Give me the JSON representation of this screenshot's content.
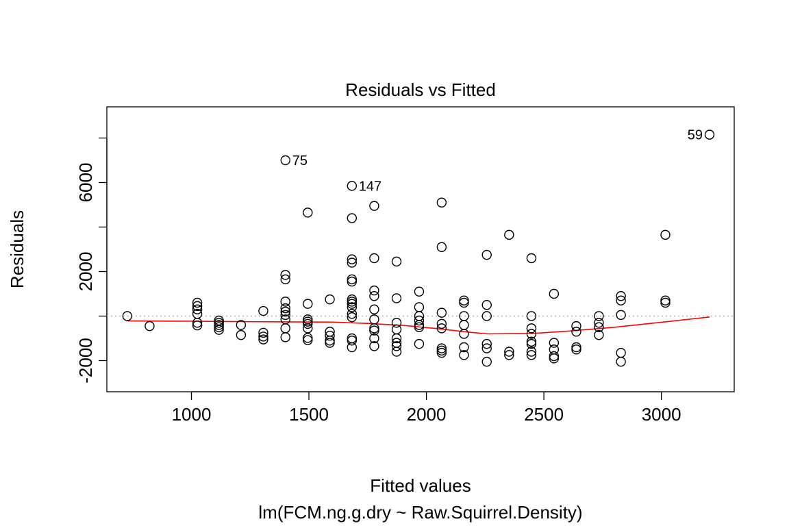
{
  "chart_data": {
    "type": "scatter",
    "title": "Residuals vs Fitted",
    "xlabel": "Fitted values",
    "ylabel": "Residuals",
    "subtitle": "lm(FCM.ng.g.dry ~ Raw.Squirrel.Density)",
    "xlim": [
      640,
      3310
    ],
    "ylim": [
      -3400,
      9400
    ],
    "xticks": [
      1000,
      1500,
      2000,
      2500,
      3000
    ],
    "yticks": [
      -2000,
      0,
      2000,
      4000,
      6000,
      8000
    ],
    "ytick_labels": [
      "-2000",
      "",
      "2000",
      "",
      "6000",
      ""
    ],
    "reference_line": {
      "y": 0,
      "style": "dotted",
      "color": "#b3b3b3"
    },
    "point_color": "#000000",
    "smooth_color": "#ff0000",
    "points": [
      {
        "x": 727,
        "y": 0
      },
      {
        "x": 822,
        "y": -450
      },
      {
        "x": 1025,
        "y": 600
      },
      {
        "x": 1025,
        "y": 450
      },
      {
        "x": 1025,
        "y": 300
      },
      {
        "x": 1025,
        "y": 100
      },
      {
        "x": 1025,
        "y": -300
      },
      {
        "x": 1025,
        "y": -420
      },
      {
        "x": 1117,
        "y": -200
      },
      {
        "x": 1117,
        "y": -300
      },
      {
        "x": 1117,
        "y": -400
      },
      {
        "x": 1117,
        "y": -500
      },
      {
        "x": 1117,
        "y": -620
      },
      {
        "x": 1211,
        "y": -400
      },
      {
        "x": 1211,
        "y": -850
      },
      {
        "x": 1306,
        "y": 230
      },
      {
        "x": 1306,
        "y": -750
      },
      {
        "x": 1306,
        "y": -920
      },
      {
        "x": 1306,
        "y": -1050
      },
      {
        "x": 1400,
        "y": 7000
      },
      {
        "x": 1400,
        "y": 1850
      },
      {
        "x": 1400,
        "y": 1650
      },
      {
        "x": 1400,
        "y": 650
      },
      {
        "x": 1400,
        "y": 350
      },
      {
        "x": 1400,
        "y": 200
      },
      {
        "x": 1400,
        "y": 50
      },
      {
        "x": 1400,
        "y": -150
      },
      {
        "x": 1400,
        "y": -550
      },
      {
        "x": 1400,
        "y": -950
      },
      {
        "x": 1495,
        "y": 4650
      },
      {
        "x": 1495,
        "y": 550
      },
      {
        "x": 1495,
        "y": -150
      },
      {
        "x": 1495,
        "y": -250
      },
      {
        "x": 1495,
        "y": -350
      },
      {
        "x": 1495,
        "y": -550
      },
      {
        "x": 1495,
        "y": -980
      },
      {
        "x": 1495,
        "y": -1080
      },
      {
        "x": 1589,
        "y": 750
      },
      {
        "x": 1589,
        "y": -700
      },
      {
        "x": 1589,
        "y": -880
      },
      {
        "x": 1589,
        "y": -1100
      },
      {
        "x": 1589,
        "y": -1200
      },
      {
        "x": 1683,
        "y": 5850
      },
      {
        "x": 1683,
        "y": 4400
      },
      {
        "x": 1683,
        "y": 2550
      },
      {
        "x": 1683,
        "y": 2400
      },
      {
        "x": 1683,
        "y": 1650
      },
      {
        "x": 1683,
        "y": 1550
      },
      {
        "x": 1683,
        "y": 750
      },
      {
        "x": 1683,
        "y": 650
      },
      {
        "x": 1683,
        "y": 550
      },
      {
        "x": 1683,
        "y": 400
      },
      {
        "x": 1683,
        "y": 100
      },
      {
        "x": 1683,
        "y": -50
      },
      {
        "x": 1683,
        "y": -1000
      },
      {
        "x": 1683,
        "y": -1100
      },
      {
        "x": 1683,
        "y": -1400
      },
      {
        "x": 1778,
        "y": 4950
      },
      {
        "x": 1778,
        "y": 2600
      },
      {
        "x": 1778,
        "y": 1150
      },
      {
        "x": 1778,
        "y": 900
      },
      {
        "x": 1778,
        "y": 300
      },
      {
        "x": 1778,
        "y": -150
      },
      {
        "x": 1778,
        "y": -550
      },
      {
        "x": 1778,
        "y": -650
      },
      {
        "x": 1778,
        "y": -1000
      },
      {
        "x": 1778,
        "y": -1350
      },
      {
        "x": 1873,
        "y": 2450
      },
      {
        "x": 1873,
        "y": 800
      },
      {
        "x": 1873,
        "y": -300
      },
      {
        "x": 1873,
        "y": -600
      },
      {
        "x": 1873,
        "y": -1000
      },
      {
        "x": 1873,
        "y": -1200
      },
      {
        "x": 1873,
        "y": -1350
      },
      {
        "x": 1873,
        "y": -1600
      },
      {
        "x": 1969,
        "y": 1100
      },
      {
        "x": 1969,
        "y": 400
      },
      {
        "x": 1969,
        "y": 0
      },
      {
        "x": 1969,
        "y": -200
      },
      {
        "x": 1969,
        "y": -400
      },
      {
        "x": 1969,
        "y": -500
      },
      {
        "x": 1969,
        "y": -1250
      },
      {
        "x": 2065,
        "y": 5100
      },
      {
        "x": 2065,
        "y": 3100
      },
      {
        "x": 2065,
        "y": 150
      },
      {
        "x": 2065,
        "y": -350
      },
      {
        "x": 2065,
        "y": -550
      },
      {
        "x": 2065,
        "y": -1450
      },
      {
        "x": 2065,
        "y": -1550
      },
      {
        "x": 2065,
        "y": -1650
      },
      {
        "x": 2160,
        "y": 700
      },
      {
        "x": 2160,
        "y": 600
      },
      {
        "x": 2160,
        "y": 0
      },
      {
        "x": 2160,
        "y": -400
      },
      {
        "x": 2160,
        "y": -800
      },
      {
        "x": 2160,
        "y": -1400
      },
      {
        "x": 2160,
        "y": -1750
      },
      {
        "x": 2257,
        "y": 2750
      },
      {
        "x": 2257,
        "y": 500
      },
      {
        "x": 2257,
        "y": 0
      },
      {
        "x": 2257,
        "y": -1250
      },
      {
        "x": 2257,
        "y": -1450
      },
      {
        "x": 2257,
        "y": -2050
      },
      {
        "x": 2352,
        "y": 3650
      },
      {
        "x": 2352,
        "y": -1600
      },
      {
        "x": 2352,
        "y": -1750
      },
      {
        "x": 2447,
        "y": 2600
      },
      {
        "x": 2447,
        "y": 0
      },
      {
        "x": 2447,
        "y": -550
      },
      {
        "x": 2447,
        "y": -800
      },
      {
        "x": 2447,
        "y": -1150
      },
      {
        "x": 2447,
        "y": -1250
      },
      {
        "x": 2447,
        "y": -1600
      },
      {
        "x": 2447,
        "y": -1750
      },
      {
        "x": 2543,
        "y": 1000
      },
      {
        "x": 2543,
        "y": -1200
      },
      {
        "x": 2543,
        "y": -1500
      },
      {
        "x": 2543,
        "y": -1800
      },
      {
        "x": 2543,
        "y": -1900
      },
      {
        "x": 2638,
        "y": -450
      },
      {
        "x": 2638,
        "y": -700
      },
      {
        "x": 2638,
        "y": -1400
      },
      {
        "x": 2638,
        "y": -1500
      },
      {
        "x": 2734,
        "y": 0
      },
      {
        "x": 2734,
        "y": -300
      },
      {
        "x": 2734,
        "y": -500
      },
      {
        "x": 2734,
        "y": -850
      },
      {
        "x": 2828,
        "y": 900
      },
      {
        "x": 2828,
        "y": 700
      },
      {
        "x": 2828,
        "y": 50
      },
      {
        "x": 2828,
        "y": -1650
      },
      {
        "x": 2828,
        "y": -2050
      },
      {
        "x": 3017,
        "y": 3650
      },
      {
        "x": 3017,
        "y": 700
      },
      {
        "x": 3017,
        "y": 600
      },
      {
        "x": 3205,
        "y": 8150
      }
    ],
    "labels": [
      {
        "text": "75",
        "x": 1400,
        "y": 7000,
        "side": "right"
      },
      {
        "text": "147",
        "x": 1683,
        "y": 5850,
        "side": "right"
      },
      {
        "text": "59",
        "x": 3205,
        "y": 8150,
        "side": "left"
      }
    ],
    "smooth": [
      {
        "x": 727,
        "y": -220
      },
      {
        "x": 1000,
        "y": -230
      },
      {
        "x": 1200,
        "y": -250
      },
      {
        "x": 1400,
        "y": -260
      },
      {
        "x": 1600,
        "y": -270
      },
      {
        "x": 1750,
        "y": -330
      },
      {
        "x": 1900,
        "y": -420
      },
      {
        "x": 2065,
        "y": -580
      },
      {
        "x": 2160,
        "y": -700
      },
      {
        "x": 2260,
        "y": -800
      },
      {
        "x": 2450,
        "y": -780
      },
      {
        "x": 2600,
        "y": -680
      },
      {
        "x": 2800,
        "y": -500
      },
      {
        "x": 3000,
        "y": -280
      },
      {
        "x": 3205,
        "y": -40
      }
    ]
  }
}
